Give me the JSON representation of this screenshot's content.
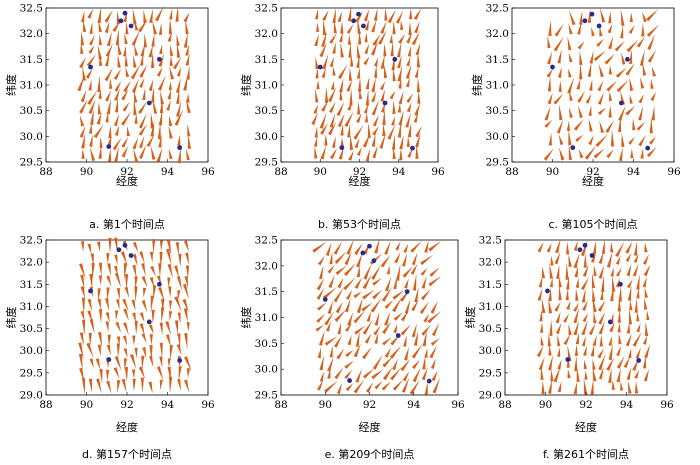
{
  "colors": {
    "arrow": "#d4621c",
    "station": "#2a2a8c",
    "frame": "#000000"
  },
  "chart_data": [
    {
      "type": "quiver",
      "caption": "a.  第1个时间点",
      "xlabel": "经度",
      "ylabel": "纬度",
      "xlim": [
        88,
        96
      ],
      "ylim": [
        29.5,
        32.5
      ],
      "xticks": [
        "88",
        "90",
        "92",
        "94",
        "96"
      ],
      "yticks": [
        "29.5",
        "30.0",
        "30.5",
        "31.0",
        "31.5",
        "32.0",
        "32.5"
      ],
      "field": {
        "angle_deg": 80,
        "variation_deg": 25,
        "density": 13,
        "seed": 1
      },
      "stations": [
        [
          91.7,
          32.25
        ],
        [
          92.2,
          32.15
        ],
        [
          90.2,
          31.35
        ],
        [
          93.6,
          31.5
        ],
        [
          93.1,
          30.65
        ],
        [
          91.1,
          29.8
        ],
        [
          94.6,
          29.78
        ],
        [
          91.9,
          32.4
        ]
      ]
    },
    {
      "type": "quiver",
      "caption": "b.  第53个时间点",
      "xlabel": "经度",
      "ylabel": "纬度",
      "xlim": [
        88,
        96
      ],
      "ylim": [
        29.5,
        32.5
      ],
      "xticks": [
        "88",
        "90",
        "92",
        "94",
        "96"
      ],
      "yticks": [
        "29.5",
        "30.0",
        "30.5",
        "31.0",
        "31.5",
        "32.0",
        "32.5"
      ],
      "field": {
        "angle_deg": 78,
        "variation_deg": 20,
        "density": 13,
        "seed": 53
      },
      "stations": [
        [
          91.7,
          32.25
        ],
        [
          92.2,
          32.15
        ],
        [
          90.0,
          31.35
        ],
        [
          93.8,
          31.5
        ],
        [
          93.3,
          30.65
        ],
        [
          91.1,
          29.78
        ],
        [
          94.7,
          29.77
        ],
        [
          91.95,
          32.38
        ]
      ]
    },
    {
      "type": "quiver",
      "caption": "c.  第105个时间点",
      "xlabel": "经度",
      "ylabel": "纬度",
      "xlim": [
        88,
        96
      ],
      "ylim": [
        29.5,
        32.5
      ],
      "xticks": [
        "88",
        "90",
        "92",
        "94",
        "96"
      ],
      "yticks": [
        "29.5",
        "30.0",
        "30.5",
        "31.0",
        "31.5",
        "32.0",
        "32.5"
      ],
      "field": {
        "angle_deg": 75,
        "variation_deg": 35,
        "density": 11,
        "seed": 105
      },
      "stations": [
        [
          91.6,
          32.25
        ],
        [
          92.3,
          32.15
        ],
        [
          90.0,
          31.35
        ],
        [
          93.7,
          31.5
        ],
        [
          93.4,
          30.65
        ],
        [
          91.0,
          29.78
        ],
        [
          94.7,
          29.77
        ],
        [
          91.95,
          32.38
        ]
      ]
    },
    {
      "type": "quiver",
      "caption": "d.  第157个时间点",
      "xlabel": "经度",
      "ylabel": "纬度",
      "xlim": [
        88,
        96
      ],
      "ylim": [
        29.0,
        32.5
      ],
      "xticks": [
        "88",
        "90",
        "92",
        "94",
        "96"
      ],
      "yticks": [
        "29.0",
        "29.5",
        "30.0",
        "30.5",
        "31.0",
        "31.5",
        "32.0",
        "32.5"
      ],
      "field": {
        "angle_deg": -82,
        "variation_deg": 15,
        "density": 13,
        "seed": 157
      },
      "stations": [
        [
          91.6,
          32.28
        ],
        [
          92.2,
          32.15
        ],
        [
          90.2,
          31.35
        ],
        [
          93.6,
          31.5
        ],
        [
          93.1,
          30.65
        ],
        [
          91.1,
          29.8
        ],
        [
          94.6,
          29.78
        ],
        [
          91.9,
          32.38
        ]
      ]
    },
    {
      "type": "quiver",
      "caption": "e.  第209个时间点",
      "xlabel": "经度",
      "ylabel": "纬度",
      "xlim": [
        88,
        96
      ],
      "ylim": [
        29.5,
        32.5
      ],
      "xticks": [
        "88",
        "90",
        "92",
        "94",
        "96"
      ],
      "yticks": [
        "29.5",
        "30.0",
        "30.5",
        "31.0",
        "31.5",
        "32.0",
        "32.5"
      ],
      "field": {
        "angle_deg": 60,
        "variation_deg": 25,
        "density": 13,
        "seed": 209
      },
      "stations": [
        [
          91.7,
          32.25
        ],
        [
          92.2,
          32.1
        ],
        [
          90.0,
          31.35
        ],
        [
          93.7,
          31.5
        ],
        [
          93.3,
          30.65
        ],
        [
          91.1,
          29.78
        ],
        [
          94.7,
          29.77
        ],
        [
          92.0,
          32.38
        ]
      ]
    },
    {
      "type": "quiver",
      "caption": "f.  第261个时间点",
      "xlabel": "经度",
      "ylabel": "纬度",
      "xlim": [
        88,
        96
      ],
      "ylim": [
        29.0,
        32.5
      ],
      "xticks": [
        "88",
        "90",
        "92",
        "94",
        "96"
      ],
      "yticks": [
        "29.0",
        "29.5",
        "30.0",
        "30.5",
        "31.0",
        "31.5",
        "32.0",
        "32.5"
      ],
      "field": {
        "angle_deg": 80,
        "variation_deg": 20,
        "density": 13,
        "seed": 261
      },
      "stations": [
        [
          91.7,
          32.28
        ],
        [
          92.3,
          32.15
        ],
        [
          90.1,
          31.35
        ],
        [
          93.7,
          31.5
        ],
        [
          93.2,
          30.65
        ],
        [
          91.1,
          29.8
        ],
        [
          94.6,
          29.78
        ],
        [
          91.95,
          32.38
        ]
      ]
    }
  ]
}
